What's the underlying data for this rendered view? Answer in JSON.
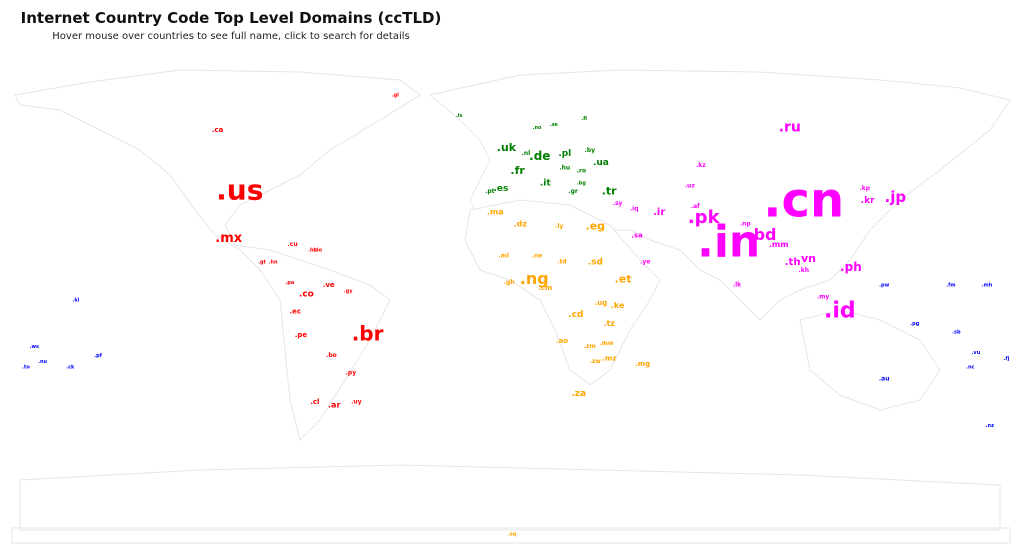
{
  "header": {
    "title": "Internet Country Code Top Level Domains (ccTLD)",
    "subtitle": "Hover mouse over countries to see full name, click to search for details"
  },
  "colors": {
    "americas": "#ff0000",
    "europe": "#008000",
    "africa": "#ffa500",
    "asia": "#ff00ff",
    "oceania": "#0000ff",
    "land_border": "#e6e6e6"
  },
  "labels": [
    {
      "t": ".cn",
      "lon": 105,
      "lat": 35,
      "s": 48,
      "r": "asia"
    },
    {
      "t": ".in",
      "lon": 78,
      "lat": 21,
      "s": 44,
      "r": "asia"
    },
    {
      "t": ".us",
      "lon": -98,
      "lat": 39,
      "s": 28,
      "r": "americas"
    },
    {
      "t": ".br",
      "lon": -52,
      "lat": -10,
      "s": 20,
      "r": "americas"
    },
    {
      "t": ".id",
      "lon": 118,
      "lat": -2,
      "s": 22,
      "r": "asia"
    },
    {
      "t": ".pk",
      "lon": 69,
      "lat": 30,
      "s": 18,
      "r": "asia"
    },
    {
      "t": ".ng",
      "lon": 8,
      "lat": 9,
      "s": 16,
      "r": "africa"
    },
    {
      "t": ".bd",
      "lon": 90,
      "lat": 24,
      "s": 16,
      "r": "asia"
    },
    {
      "t": ".jp",
      "lon": 138,
      "lat": 37,
      "s": 15,
      "r": "asia"
    },
    {
      "t": ".ru",
      "lon": 100,
      "lat": 61,
      "s": 14,
      "r": "asia"
    },
    {
      "t": ".mx",
      "lon": -102,
      "lat": 23,
      "s": 13,
      "r": "americas"
    },
    {
      "t": ".ph",
      "lon": 122,
      "lat": 13,
      "s": 12,
      "r": "asia"
    },
    {
      "t": ".vn",
      "lon": 106,
      "lat": 16,
      "s": 11,
      "r": "asia"
    },
    {
      "t": ".de",
      "lon": 10,
      "lat": 51,
      "s": 12,
      "r": "europe"
    },
    {
      "t": ".uk",
      "lon": -2,
      "lat": 54,
      "s": 11,
      "r": "europe"
    },
    {
      "t": ".fr",
      "lon": 2,
      "lat": 46,
      "s": 11,
      "r": "europe"
    },
    {
      "t": ".tr",
      "lon": 35,
      "lat": 39,
      "s": 11,
      "r": "europe"
    },
    {
      "t": ".eg",
      "lon": 30,
      "lat": 27,
      "s": 11,
      "r": "africa"
    },
    {
      "t": ".et",
      "lon": 40,
      "lat": 9,
      "s": 11,
      "r": "africa"
    },
    {
      "t": ".ir",
      "lon": 53,
      "lat": 32,
      "s": 10,
      "r": "asia"
    },
    {
      "t": ".th",
      "lon": 101,
      "lat": 15,
      "s": 10,
      "r": "asia"
    },
    {
      "t": ".co",
      "lon": -74,
      "lat": 4,
      "s": 9,
      "r": "americas"
    },
    {
      "t": ".cd",
      "lon": 23,
      "lat": -3,
      "s": 9,
      "r": "africa"
    },
    {
      "t": ".za",
      "lon": 24,
      "lat": -30,
      "s": 9,
      "r": "africa"
    },
    {
      "t": ".it",
      "lon": 12,
      "lat": 42,
      "s": 9,
      "r": "europe"
    },
    {
      "t": ".es",
      "lon": -4,
      "lat": 40,
      "s": 9,
      "r": "europe"
    },
    {
      "t": ".pl",
      "lon": 19,
      "lat": 52,
      "s": 9,
      "r": "europe"
    },
    {
      "t": ".ua",
      "lon": 32,
      "lat": 49,
      "s": 9,
      "r": "europe"
    },
    {
      "t": ".mm",
      "lon": 96,
      "lat": 21,
      "s": 8,
      "r": "asia"
    },
    {
      "t": ".kr",
      "lon": 128,
      "lat": 36,
      "s": 9,
      "r": "asia"
    },
    {
      "t": ".ca",
      "lon": -106,
      "lat": 60,
      "s": 7,
      "r": "americas"
    },
    {
      "t": ".ar",
      "lon": -64,
      "lat": -34,
      "s": 8,
      "r": "americas"
    },
    {
      "t": ".pe",
      "lon": -76,
      "lat": -10,
      "s": 7,
      "r": "americas"
    },
    {
      "t": ".ve",
      "lon": -66,
      "lat": 7,
      "s": 7,
      "r": "americas"
    },
    {
      "t": ".cl",
      "lon": -71,
      "lat": -33,
      "s": 7,
      "r": "americas"
    },
    {
      "t": ".ec",
      "lon": -78,
      "lat": -2,
      "s": 7,
      "r": "americas"
    },
    {
      "t": ".bo",
      "lon": -65,
      "lat": -17,
      "s": 6,
      "r": "americas"
    },
    {
      "t": ".py",
      "lon": -58,
      "lat": -23,
      "s": 6,
      "r": "americas"
    },
    {
      "t": ".uy",
      "lon": -56,
      "lat": -33,
      "s": 6,
      "r": "americas"
    },
    {
      "t": ".sd",
      "lon": 30,
      "lat": 15,
      "s": 9,
      "r": "africa"
    },
    {
      "t": ".dz",
      "lon": 3,
      "lat": 28,
      "s": 8,
      "r": "africa"
    },
    {
      "t": ".ma",
      "lon": -6,
      "lat": 32,
      "s": 8,
      "r": "africa"
    },
    {
      "t": ".ke",
      "lon": 38,
      "lat": 0,
      "s": 8,
      "r": "africa"
    },
    {
      "t": ".tz",
      "lon": 35,
      "lat": -6,
      "s": 8,
      "r": "africa"
    },
    {
      "t": ".mg",
      "lon": 47,
      "lat": -20,
      "s": 7,
      "r": "africa"
    },
    {
      "t": ".ug",
      "lon": 32,
      "lat": 1,
      "s": 7,
      "r": "africa"
    },
    {
      "t": ".mz",
      "lon": 35,
      "lat": -18,
      "s": 7,
      "r": "africa"
    },
    {
      "t": ".ao",
      "lon": 18,
      "lat": -12,
      "s": 7,
      "r": "africa"
    },
    {
      "t": ".zm",
      "lon": 28,
      "lat": -14,
      "s": 6,
      "r": "africa"
    },
    {
      "t": ".mw",
      "lon": 34,
      "lat": -13,
      "s": 6,
      "r": "africa"
    },
    {
      "t": ".zw",
      "lon": 30,
      "lat": -19,
      "s": 6,
      "r": "africa"
    },
    {
      "t": ".cm",
      "lon": 12,
      "lat": 6,
      "s": 7,
      "r": "africa"
    },
    {
      "t": ".gh",
      "lon": -1,
      "lat": 8,
      "s": 6,
      "r": "africa"
    },
    {
      "t": ".ml",
      "lon": -3,
      "lat": 17,
      "s": 6,
      "r": "africa"
    },
    {
      "t": ".ne",
      "lon": 9,
      "lat": 17,
      "s": 6,
      "r": "africa"
    },
    {
      "t": ".td",
      "lon": 18,
      "lat": 15,
      "s": 6,
      "r": "africa"
    },
    {
      "t": ".ly",
      "lon": 17,
      "lat": 27,
      "s": 6,
      "r": "africa"
    },
    {
      "t": ".ye",
      "lon": 48,
      "lat": 15,
      "s": 6,
      "r": "asia"
    },
    {
      "t": ".sa",
      "lon": 45,
      "lat": 24,
      "s": 7,
      "r": "asia"
    },
    {
      "t": ".iq",
      "lon": 44,
      "lat": 33,
      "s": 6,
      "r": "asia"
    },
    {
      "t": ".af",
      "lon": 66,
      "lat": 34,
      "s": 6,
      "r": "asia"
    },
    {
      "t": ".uz",
      "lon": 64,
      "lat": 41,
      "s": 6,
      "r": "asia"
    },
    {
      "t": ".kz",
      "lon": 68,
      "lat": 48,
      "s": 6,
      "r": "asia"
    },
    {
      "t": ".np",
      "lon": 84,
      "lat": 28,
      "s": 6,
      "r": "asia"
    },
    {
      "t": ".lk",
      "lon": 81,
      "lat": 7,
      "s": 6,
      "r": "asia"
    },
    {
      "t": ".my",
      "lon": 112,
      "lat": 3,
      "s": 6,
      "r": "asia"
    },
    {
      "t": ".kh",
      "lon": 105,
      "lat": 12,
      "s": 6,
      "r": "asia"
    },
    {
      "t": ".kp",
      "lon": 127,
      "lat": 40,
      "s": 6,
      "r": "asia"
    },
    {
      "t": ".sy",
      "lon": 38,
      "lat": 35,
      "s": 6,
      "r": "asia"
    },
    {
      "t": ".au",
      "lon": 134,
      "lat": -25,
      "s": 6,
      "r": "oceania"
    },
    {
      "t": ".pg",
      "lon": 145,
      "lat": -6,
      "s": 5,
      "r": "oceania"
    },
    {
      "t": ".nz",
      "lon": 172,
      "lat": -41,
      "s": 5,
      "r": "oceania"
    },
    {
      "t": ".fj",
      "lon": 178,
      "lat": -18,
      "s": 5,
      "r": "oceania"
    },
    {
      "t": ".sb",
      "lon": 160,
      "lat": -9,
      "s": 5,
      "r": "oceania"
    },
    {
      "t": ".vu",
      "lon": 167,
      "lat": -16,
      "s": 5,
      "r": "oceania"
    },
    {
      "t": ".nc",
      "lon": 165,
      "lat": -21,
      "s": 5,
      "r": "oceania"
    },
    {
      "t": ".ki",
      "lon": -157,
      "lat": 2,
      "s": 5,
      "r": "oceania"
    },
    {
      "t": ".ws",
      "lon": -172,
      "lat": -14,
      "s": 5,
      "r": "oceania"
    },
    {
      "t": ".to",
      "lon": -175,
      "lat": -21,
      "s": 5,
      "r": "oceania"
    },
    {
      "t": ".pf",
      "lon": -149,
      "lat": -17,
      "s": 5,
      "r": "oceania"
    },
    {
      "t": ".ck",
      "lon": -159,
      "lat": -21,
      "s": 5,
      "r": "oceania"
    },
    {
      "t": ".nu",
      "lon": -169,
      "lat": -19,
      "s": 5,
      "r": "oceania"
    },
    {
      "t": ".fm",
      "lon": 158,
      "lat": 7,
      "s": 5,
      "r": "oceania"
    },
    {
      "t": ".mh",
      "lon": 171,
      "lat": 7,
      "s": 5,
      "r": "oceania"
    },
    {
      "t": ".pw",
      "lon": 134,
      "lat": 7,
      "s": 5,
      "r": "oceania"
    },
    {
      "t": ".gl",
      "lon": -42,
      "lat": 72,
      "s": 5,
      "r": "americas"
    },
    {
      "t": ".cu",
      "lon": -79,
      "lat": 21,
      "s": 6,
      "r": "americas"
    },
    {
      "t": ".ht",
      "lon": -72,
      "lat": 19,
      "s": 5,
      "r": "americas"
    },
    {
      "t": ".do",
      "lon": -70,
      "lat": 19,
      "s": 5,
      "r": "americas"
    },
    {
      "t": ".gt",
      "lon": -90,
      "lat": 15,
      "s": 5,
      "r": "americas"
    },
    {
      "t": ".hn",
      "lon": -86,
      "lat": 15,
      "s": 5,
      "r": "americas"
    },
    {
      "t": ".pa",
      "lon": -80,
      "lat": 8,
      "s": 5,
      "r": "americas"
    },
    {
      "t": ".gy",
      "lon": -59,
      "lat": 5,
      "s": 5,
      "r": "americas"
    },
    {
      "t": ".fi",
      "lon": 26,
      "lat": 64,
      "s": 5,
      "r": "europe"
    },
    {
      "t": ".se",
      "lon": 15,
      "lat": 62,
      "s": 5,
      "r": "europe"
    },
    {
      "t": ".no",
      "lon": 9,
      "lat": 61,
      "s": 5,
      "r": "europe"
    },
    {
      "t": ".by",
      "lon": 28,
      "lat": 53,
      "s": 6,
      "r": "europe"
    },
    {
      "t": ".ro",
      "lon": 25,
      "lat": 46,
      "s": 6,
      "r": "europe"
    },
    {
      "t": ".hu",
      "lon": 19,
      "lat": 47,
      "s": 6,
      "r": "europe"
    },
    {
      "t": ".nl",
      "lon": 5,
      "lat": 52,
      "s": 6,
      "r": "europe"
    },
    {
      "t": ".gr",
      "lon": 22,
      "lat": 39,
      "s": 6,
      "r": "europe"
    },
    {
      "t": ".pt",
      "lon": -8,
      "lat": 39,
      "s": 6,
      "r": "europe"
    },
    {
      "t": ".is",
      "lon": -19,
      "lat": 65,
      "s": 5,
      "r": "europe"
    },
    {
      "t": ".bg",
      "lon": 25,
      "lat": 42,
      "s": 5,
      "r": "europe"
    },
    {
      "t": ".aq",
      "lon": 0,
      "lat": -78,
      "s": 5,
      "r": "africa"
    }
  ]
}
